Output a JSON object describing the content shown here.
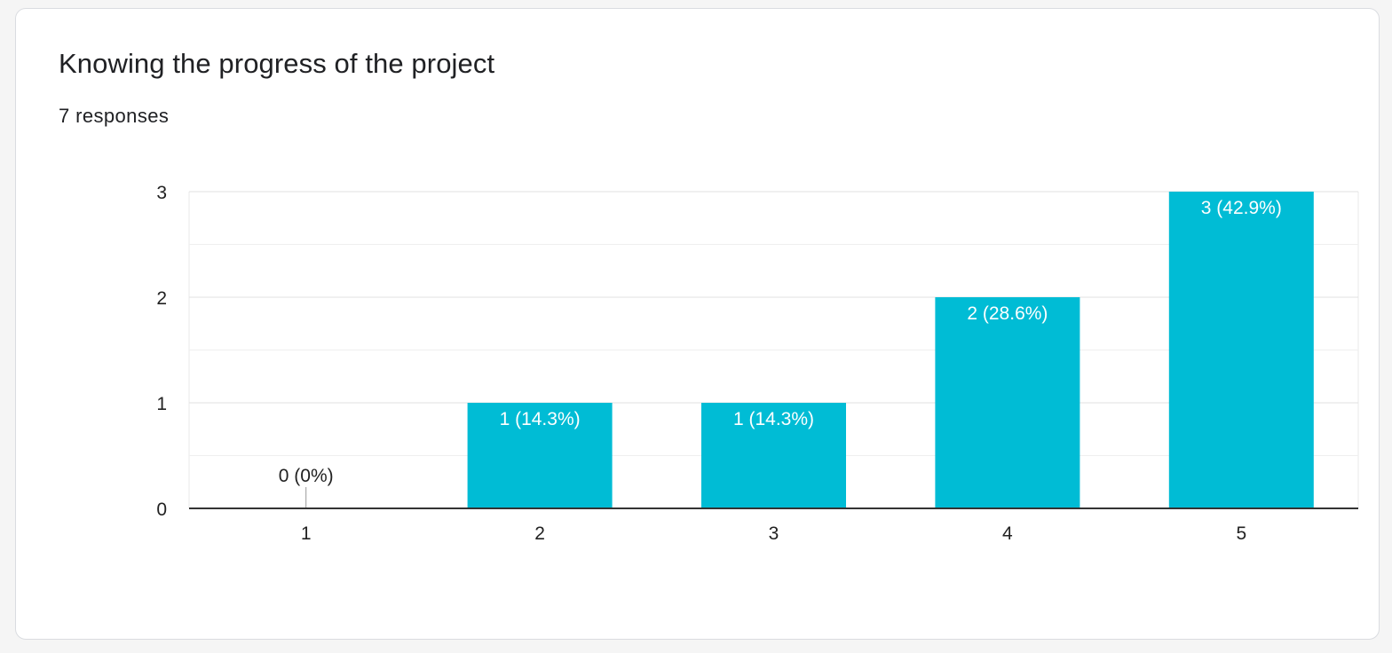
{
  "card": {
    "title": "Knowing the progress of the project",
    "response_count": "7 responses"
  },
  "chart_data": {
    "type": "bar",
    "categories": [
      "1",
      "2",
      "3",
      "4",
      "5"
    ],
    "values": [
      0,
      1,
      1,
      2,
      3
    ],
    "data_labels": [
      "0 (0%)",
      "1 (14.3%)",
      "1 (14.3%)",
      "2 (28.6%)",
      "3 (42.9%)"
    ],
    "y_ticks": [
      "0",
      "1",
      "2",
      "3"
    ],
    "ylim": [
      0,
      3
    ],
    "grid": true,
    "bar_color": "#00bcd5",
    "title": "",
    "xlabel": "",
    "ylabel": ""
  }
}
